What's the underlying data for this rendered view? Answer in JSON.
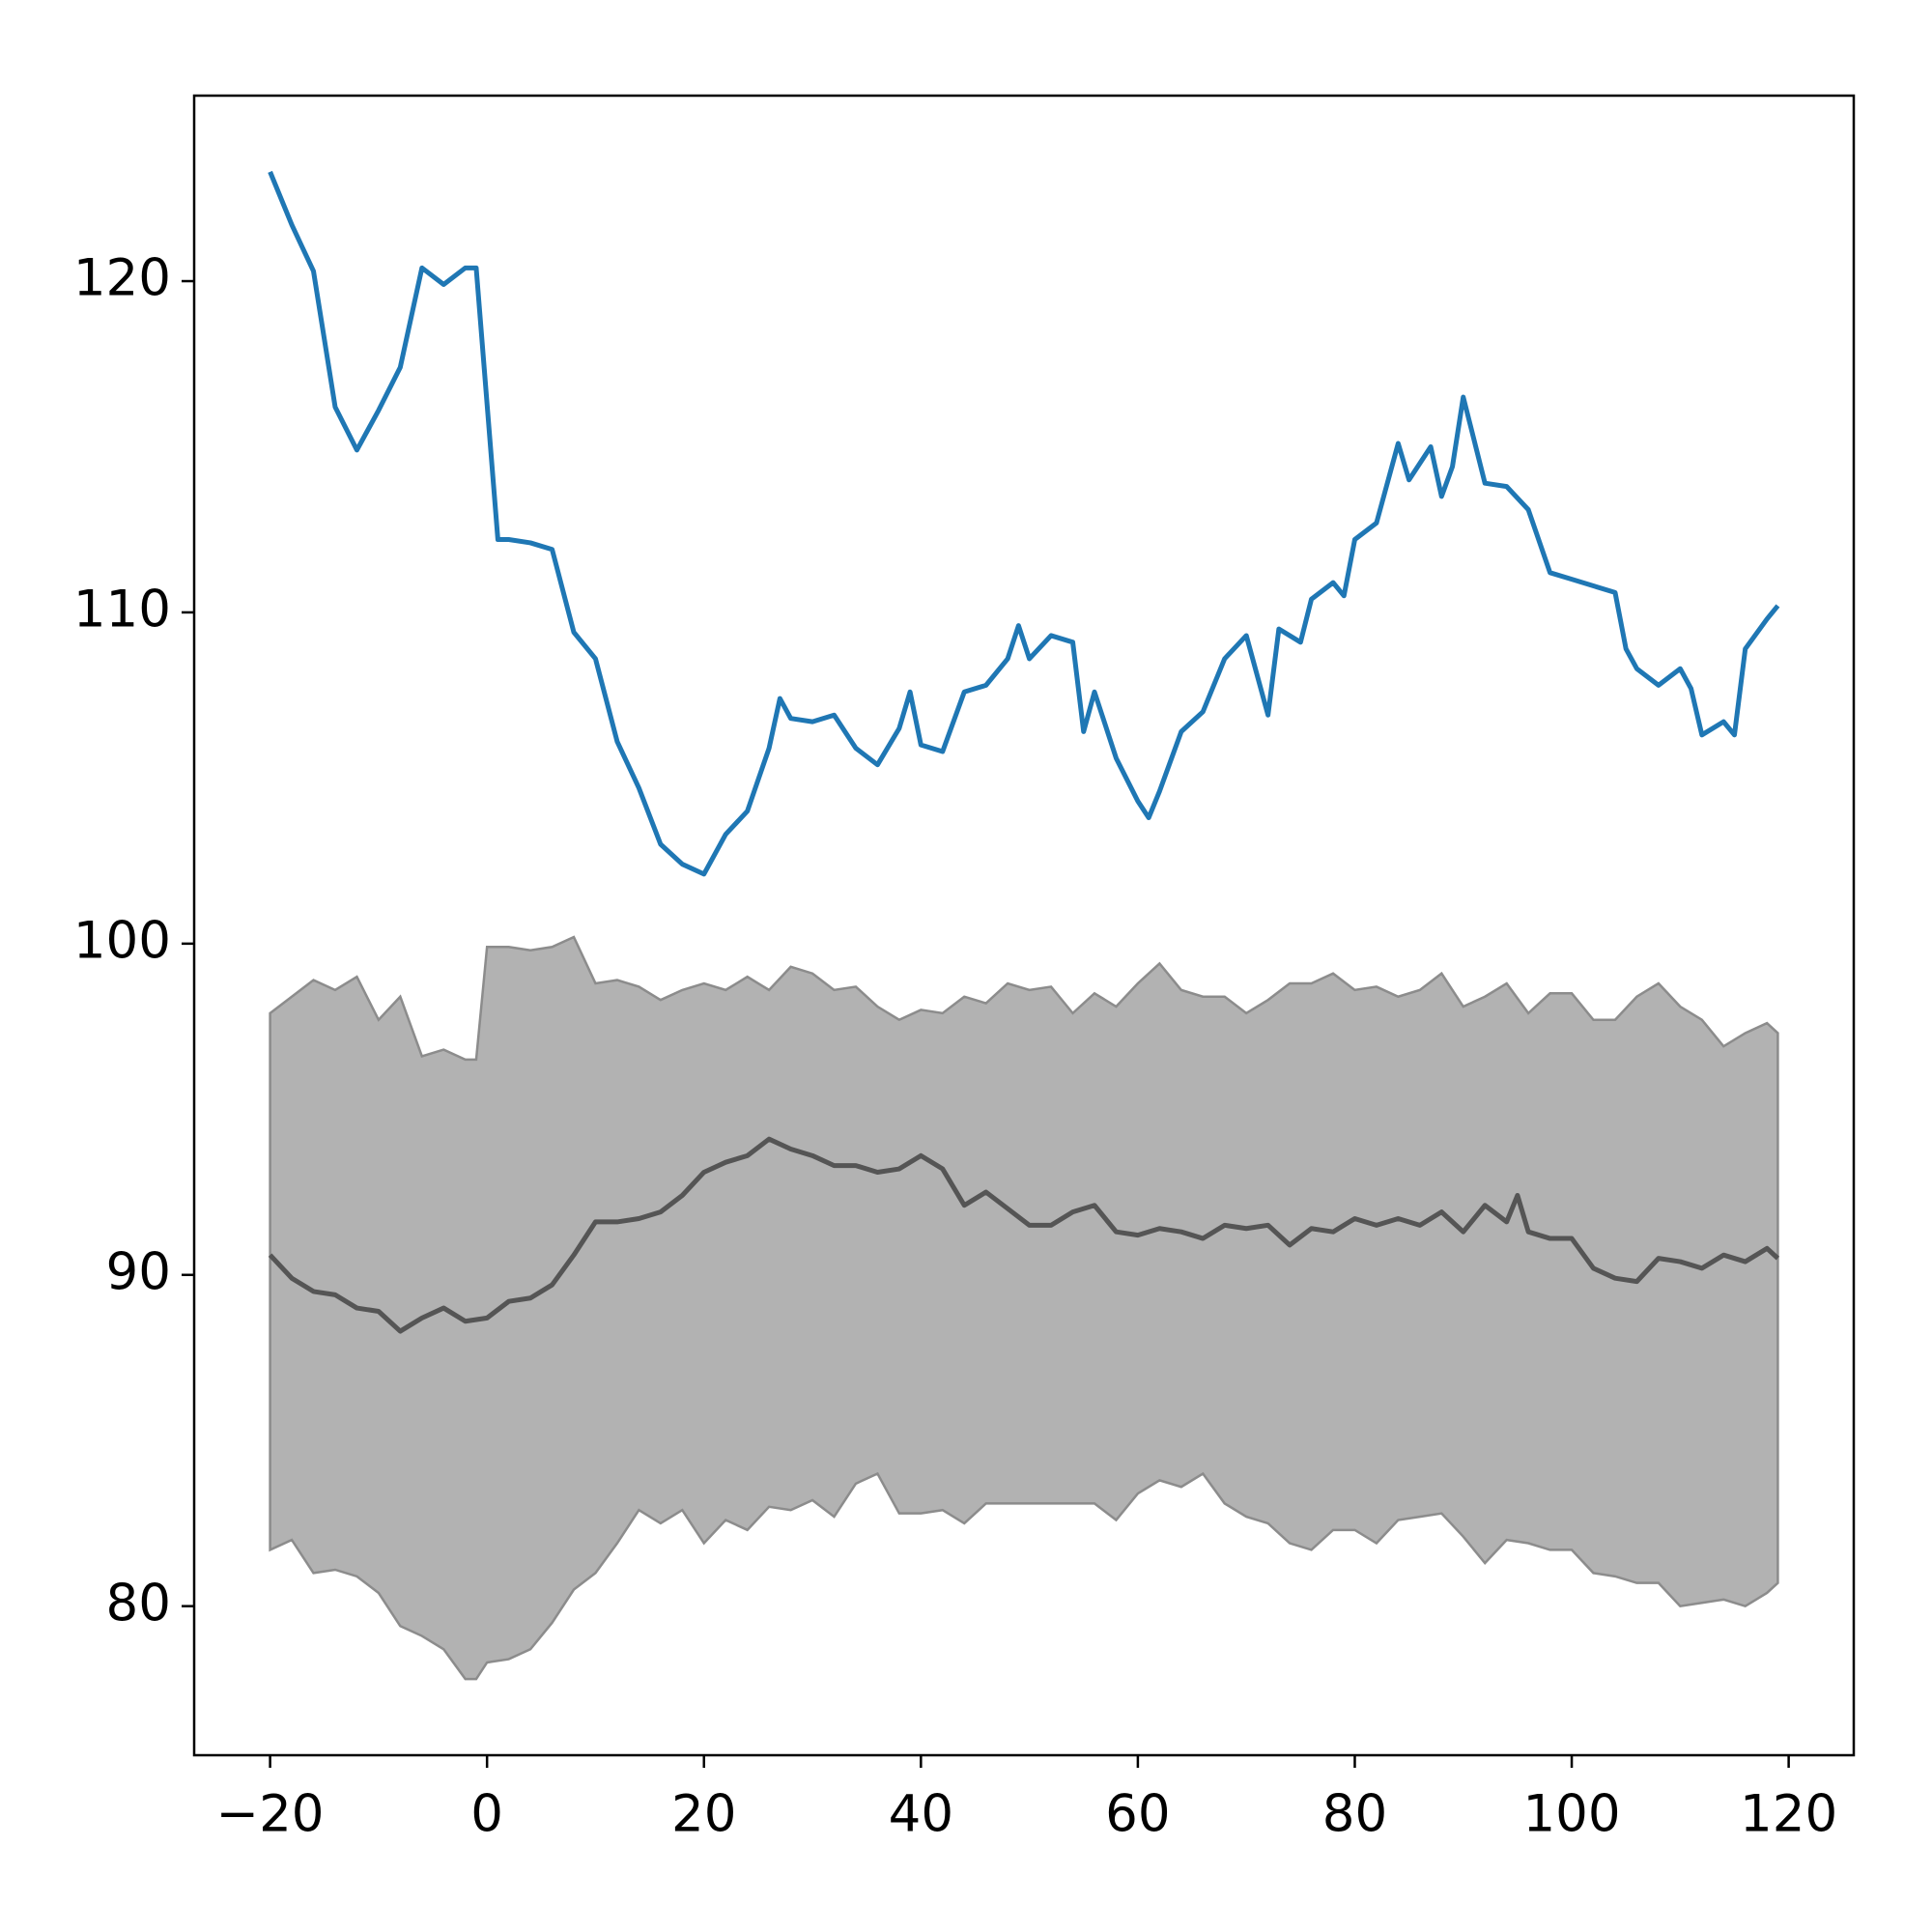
{
  "chart_data": {
    "type": "line",
    "xlim": [
      -27,
      126
    ],
    "ylim": [
      75.5,
      125.6
    ],
    "xticks": [
      {
        "value": -20,
        "label": "−20"
      },
      0,
      20,
      40,
      60,
      80,
      100,
      120
    ],
    "yticks": [
      80,
      90,
      100,
      110,
      120
    ],
    "band": {
      "color": "#b2b2b2",
      "edge_color": "#8c8c8c",
      "x": [
        -20,
        -18,
        -16,
        -14,
        -12,
        -10,
        -8,
        -6,
        -4,
        -2,
        -1,
        0,
        2,
        4,
        6,
        8,
        10,
        12,
        14,
        16,
        18,
        20,
        22,
        24,
        26,
        28,
        30,
        32,
        34,
        36,
        38,
        40,
        42,
        44,
        46,
        48,
        50,
        52,
        54,
        56,
        58,
        60,
        62,
        64,
        66,
        68,
        70,
        72,
        74,
        76,
        78,
        80,
        82,
        84,
        86,
        88,
        90,
        92,
        94,
        96,
        98,
        100,
        102,
        104,
        106,
        108,
        110,
        112,
        114,
        116,
        118,
        119
      ],
      "upper": [
        97.9,
        98.4,
        98.9,
        98.6,
        99.0,
        97.7,
        98.4,
        96.6,
        96.8,
        96.5,
        96.5,
        99.9,
        99.9,
        99.8,
        99.9,
        100.2,
        98.8,
        98.9,
        98.7,
        98.3,
        98.6,
        98.8,
        98.6,
        99.0,
        98.6,
        99.3,
        99.1,
        98.6,
        98.7,
        98.1,
        97.7,
        98.0,
        97.9,
        98.4,
        98.2,
        98.8,
        98.6,
        98.7,
        97.9,
        98.5,
        98.1,
        98.8,
        99.4,
        98.6,
        98.4,
        98.4,
        97.9,
        98.3,
        98.8,
        98.8,
        99.1,
        98.6,
        98.7,
        98.4,
        98.6,
        99.1,
        98.1,
        98.4,
        98.8,
        97.9,
        98.5,
        98.5,
        97.7,
        97.7,
        98.4,
        98.8,
        98.1,
        97.7,
        96.9,
        97.3,
        97.6,
        97.3
      ],
      "lower": [
        81.7,
        82.0,
        81.0,
        81.1,
        80.9,
        80.4,
        79.4,
        79.1,
        78.7,
        77.8,
        77.8,
        78.3,
        78.4,
        78.7,
        79.5,
        80.5,
        81.0,
        81.9,
        82.9,
        82.5,
        82.9,
        81.9,
        82.6,
        82.3,
        83.0,
        82.9,
        83.2,
        82.7,
        83.7,
        84.0,
        82.8,
        82.8,
        82.9,
        82.5,
        83.1,
        83.1,
        83.1,
        83.1,
        83.1,
        83.1,
        82.6,
        83.4,
        83.8,
        83.6,
        84.0,
        83.1,
        82.7,
        82.5,
        81.9,
        81.7,
        82.3,
        82.3,
        81.9,
        82.6,
        82.7,
        82.8,
        82.1,
        81.3,
        82.0,
        81.9,
        81.7,
        81.7,
        81.0,
        80.9,
        80.7,
        80.7,
        80.0,
        80.1,
        80.2,
        80.0,
        80.4,
        80.7
      ]
    },
    "series": [
      {
        "color": "#1f77b4",
        "x": [
          -20,
          -18,
          -16,
          -14,
          -12,
          -10,
          -8,
          -6,
          -4,
          -2,
          -1,
          1,
          2,
          4,
          6,
          8,
          10,
          12,
          14,
          16,
          18,
          20,
          22,
          24,
          26,
          27,
          28,
          30,
          32,
          34,
          36,
          38,
          39,
          40,
          42,
          44,
          46,
          48,
          49,
          50,
          52,
          54,
          55,
          56,
          58,
          60,
          61,
          62,
          64,
          66,
          68,
          70,
          72,
          73,
          75,
          76,
          78,
          79,
          80,
          82,
          84,
          85,
          87,
          88,
          89,
          90,
          92,
          94,
          96,
          98,
          100,
          102,
          104,
          105,
          106,
          108,
          110,
          111,
          112,
          114,
          115,
          116,
          118,
          119
        ],
        "values": [
          123.3,
          121.7,
          120.3,
          116.2,
          114.9,
          116.1,
          117.4,
          120.4,
          119.9,
          120.4,
          120.4,
          112.2,
          112.2,
          112.1,
          111.9,
          109.4,
          108.6,
          106.1,
          104.7,
          103.0,
          102.4,
          102.1,
          103.3,
          104.0,
          105.9,
          107.4,
          106.8,
          106.7,
          106.9,
          105.9,
          105.4,
          106.5,
          107.6,
          106.0,
          105.8,
          107.6,
          107.8,
          108.6,
          109.6,
          108.6,
          109.3,
          109.1,
          106.4,
          107.6,
          105.6,
          104.3,
          103.8,
          104.6,
          106.4,
          107.0,
          108.6,
          109.3,
          106.9,
          109.5,
          109.1,
          110.4,
          110.9,
          110.5,
          112.2,
          112.7,
          115.1,
          114.0,
          115.0,
          113.5,
          114.4,
          116.5,
          113.9,
          113.8,
          113.1,
          111.2,
          111.0,
          110.8,
          110.6,
          108.9,
          108.3,
          107.8,
          108.3,
          107.7,
          106.3,
          106.7,
          106.3,
          108.9,
          109.8,
          110.2
        ]
      },
      {
        "color": "#555555",
        "x": [
          -20,
          -18,
          -16,
          -14,
          -12,
          -10,
          -8,
          -6,
          -4,
          -2,
          0,
          2,
          4,
          6,
          8,
          10,
          12,
          14,
          16,
          18,
          20,
          22,
          24,
          26,
          28,
          30,
          32,
          34,
          36,
          38,
          40,
          42,
          44,
          46,
          48,
          50,
          52,
          54,
          56,
          58,
          60,
          62,
          64,
          66,
          68,
          70,
          72,
          74,
          76,
          78,
          80,
          82,
          84,
          86,
          88,
          90,
          92,
          94,
          95,
          96,
          98,
          100,
          102,
          104,
          106,
          108,
          110,
          112,
          114,
          116,
          118,
          119
        ],
        "values": [
          90.6,
          89.9,
          89.5,
          89.4,
          89.0,
          88.9,
          88.3,
          88.7,
          89.0,
          88.6,
          88.7,
          89.2,
          89.3,
          89.7,
          90.6,
          91.6,
          91.6,
          91.7,
          91.9,
          92.4,
          93.1,
          93.4,
          93.6,
          94.1,
          93.8,
          93.6,
          93.3,
          93.3,
          93.1,
          93.2,
          93.6,
          93.2,
          92.1,
          92.5,
          92.0,
          91.5,
          91.5,
          91.9,
          92.1,
          91.3,
          91.2,
          91.4,
          91.3,
          91.1,
          91.5,
          91.4,
          91.5,
          90.9,
          91.4,
          91.3,
          91.7,
          91.5,
          91.7,
          91.5,
          91.9,
          91.3,
          92.1,
          91.6,
          92.4,
          91.3,
          91.1,
          91.1,
          90.2,
          89.9,
          89.8,
          90.5,
          90.4,
          90.2,
          90.6,
          90.4,
          90.8,
          90.5
        ]
      }
    ]
  }
}
